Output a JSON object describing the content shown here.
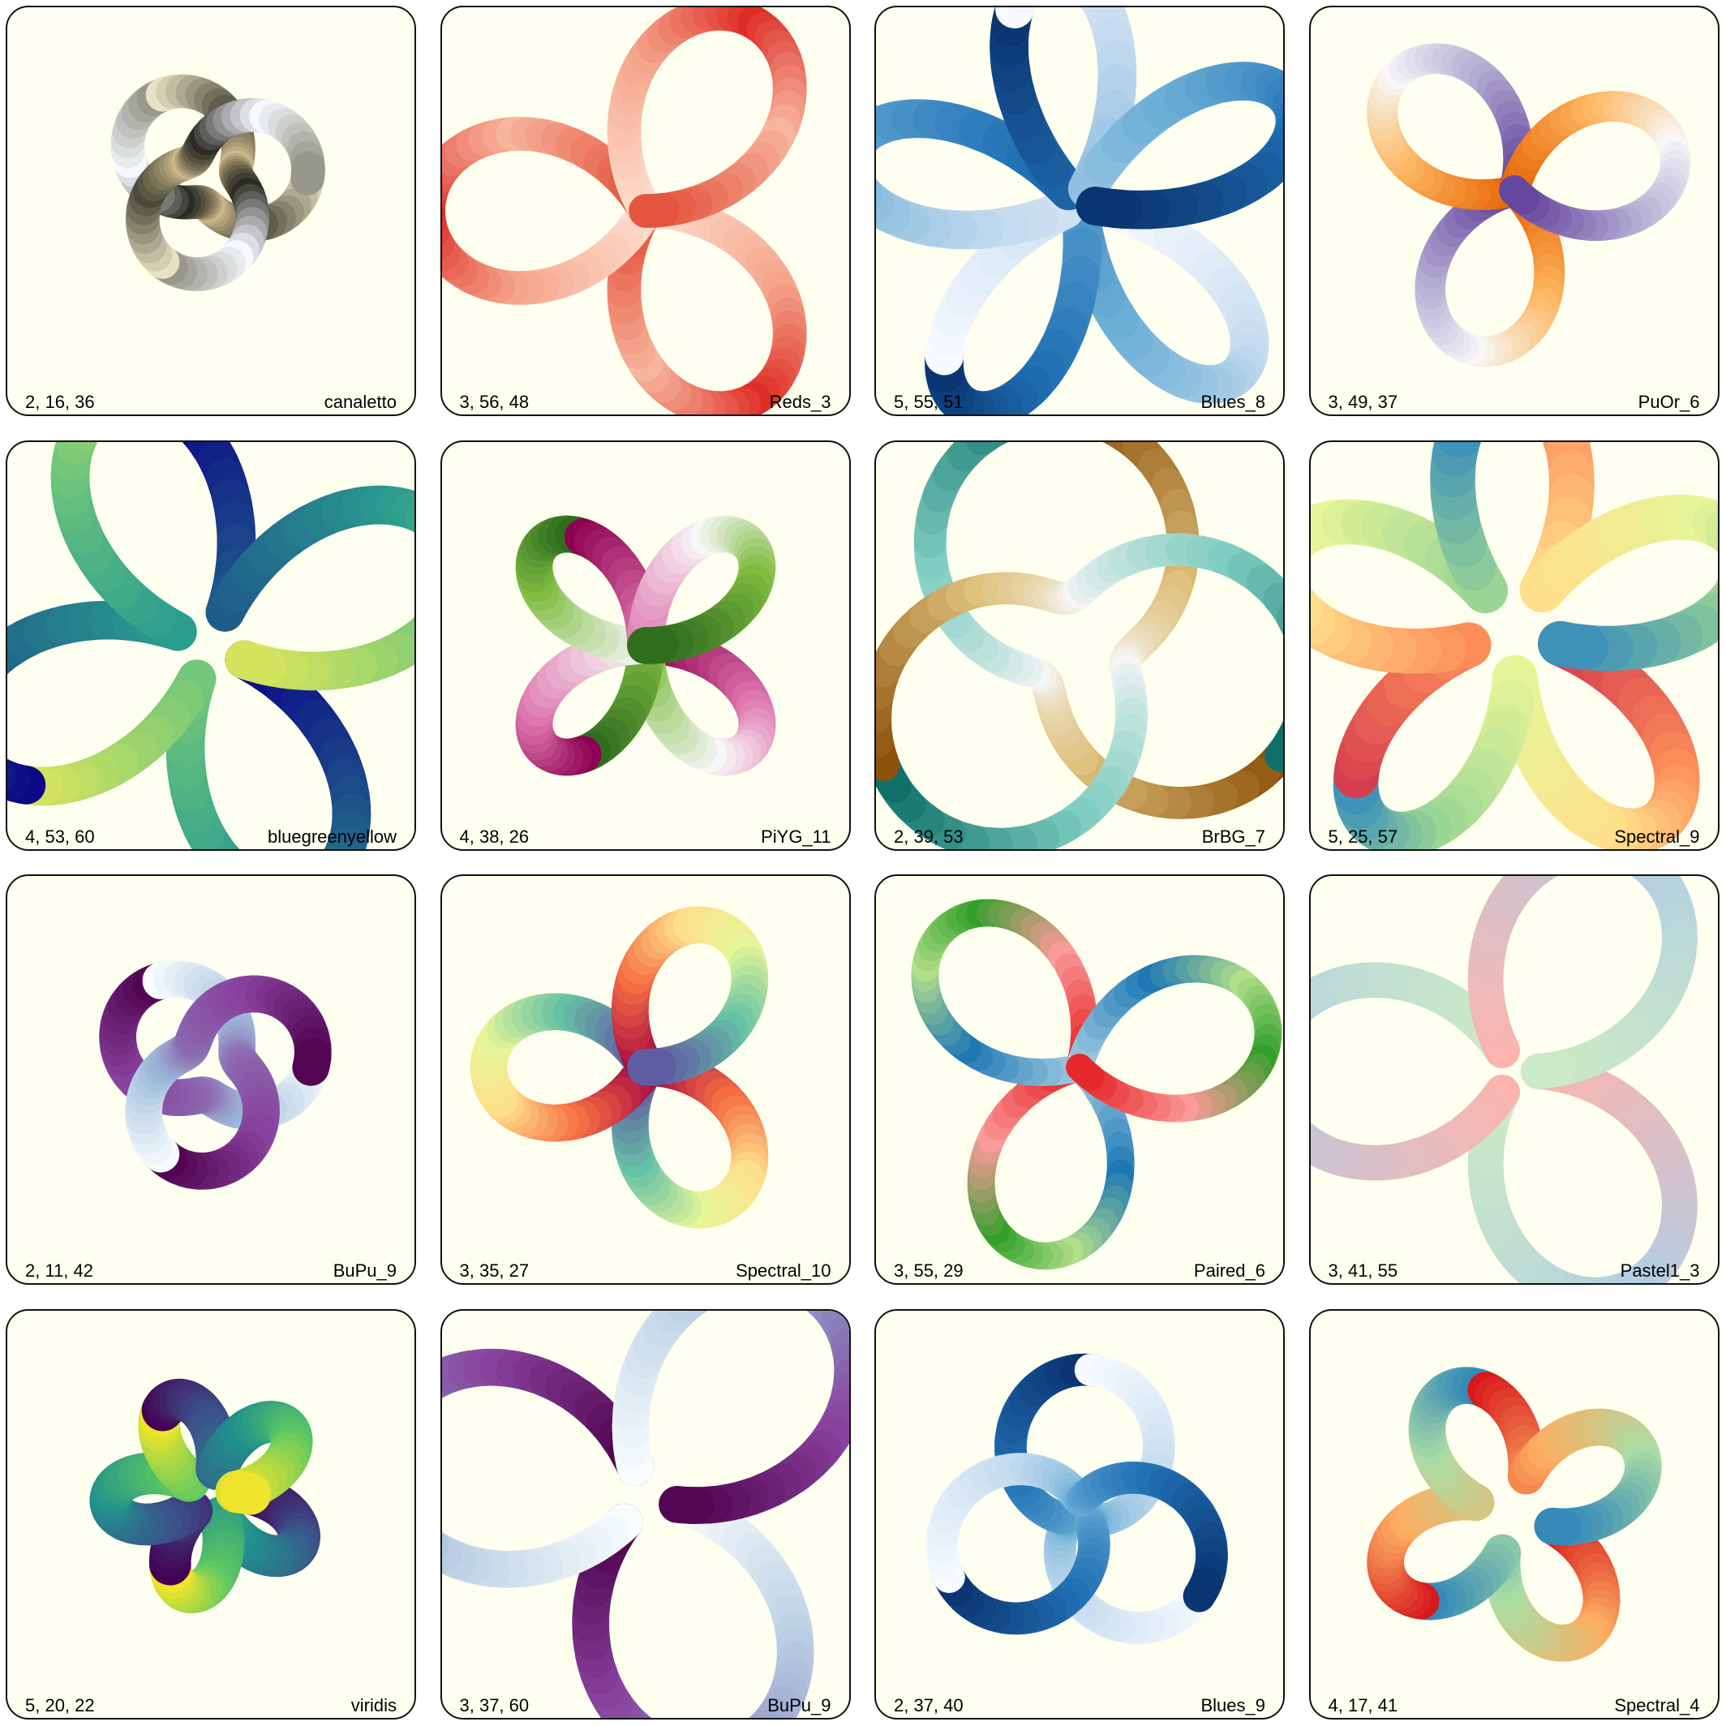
{
  "tiles": [
    {
      "params": "2, 16, 36",
      "cmap": "canaletto",
      "colors": [
        "#e8e2c4",
        "#4a4a3a",
        "#cdb98a",
        "#2c2c24",
        "#f5f8ff",
        "#8a8a7a"
      ]
    },
    {
      "params": "3, 56, 48",
      "cmap": "Reds_3",
      "colors": [
        "#fee0d2",
        "#f4a58a",
        "#de2d26",
        "#f7b59e",
        "#e34a33"
      ]
    },
    {
      "params": "5, 55, 51",
      "cmap": "Blues_8",
      "colors": [
        "#f7fbff",
        "#c6dbef",
        "#6baed6",
        "#2171b5",
        "#08306b"
      ]
    },
    {
      "params": "3, 49, 37",
      "cmap": "PuOr_6",
      "colors": [
        "#e66101",
        "#fdb863",
        "#f7f7f7",
        "#b2abd2",
        "#5e3c99"
      ]
    },
    {
      "params": "4, 53, 60",
      "cmap": "bluegreenyellow",
      "colors": [
        "#0d0887",
        "#1f5c8a",
        "#2a9d8f",
        "#72c77a",
        "#dde65a"
      ]
    },
    {
      "params": "4, 38, 26",
      "cmap": "PiYG_11",
      "colors": [
        "#8e0152",
        "#de77ae",
        "#f7f7f7",
        "#7fbc41",
        "#276419"
      ]
    },
    {
      "params": "2, 39, 53",
      "cmap": "BrBG_7",
      "colors": [
        "#8c510a",
        "#dfc27d",
        "#f5f5f5",
        "#80cdc1",
        "#01665e"
      ]
    },
    {
      "params": "5, 25, 57",
      "cmap": "Spectral_9",
      "colors": [
        "#d53e4f",
        "#fc8d59",
        "#fee08b",
        "#e6f598",
        "#99d594",
        "#3288bd"
      ]
    },
    {
      "params": "2, 11, 42",
      "cmap": "BuPu_9",
      "colors": [
        "#f7fcfd",
        "#9ebcda",
        "#8c6bb1",
        "#88419d",
        "#4d004b"
      ]
    },
    {
      "params": "3, 35, 27",
      "cmap": "Spectral_10",
      "colors": [
        "#9e0142",
        "#f46d43",
        "#fee08b",
        "#e6f598",
        "#66c2a5",
        "#5e4fa2"
      ]
    },
    {
      "params": "3, 55, 29",
      "cmap": "Paired_6",
      "colors": [
        "#a6cee3",
        "#1f78b4",
        "#b2df8a",
        "#33a02c",
        "#fb9a99",
        "#e31a1c"
      ]
    },
    {
      "params": "3, 41, 55",
      "cmap": "Pastel1_3",
      "colors": [
        "#fbb4ae",
        "#b3cde3",
        "#ccebc5"
      ]
    },
    {
      "params": "5, 20, 22",
      "cmap": "viridis",
      "colors": [
        "#440154",
        "#3b528b",
        "#21918c",
        "#5ec962",
        "#fde725"
      ]
    },
    {
      "params": "3, 37, 60",
      "cmap": "BuPu_9",
      "colors": [
        "#f7fcfd",
        "#bfd3e6",
        "#8c96c6",
        "#88419d",
        "#4d004b"
      ]
    },
    {
      "params": "2, 37, 40",
      "cmap": "Blues_9",
      "colors": [
        "#f7fbff",
        "#c6dbef",
        "#6baed6",
        "#2171b5",
        "#08306b"
      ]
    },
    {
      "params": "4, 17, 41",
      "cmap": "Spectral_4",
      "colors": [
        "#d7191c",
        "#fdae61",
        "#abdda4",
        "#2b83ba"
      ]
    }
  ]
}
